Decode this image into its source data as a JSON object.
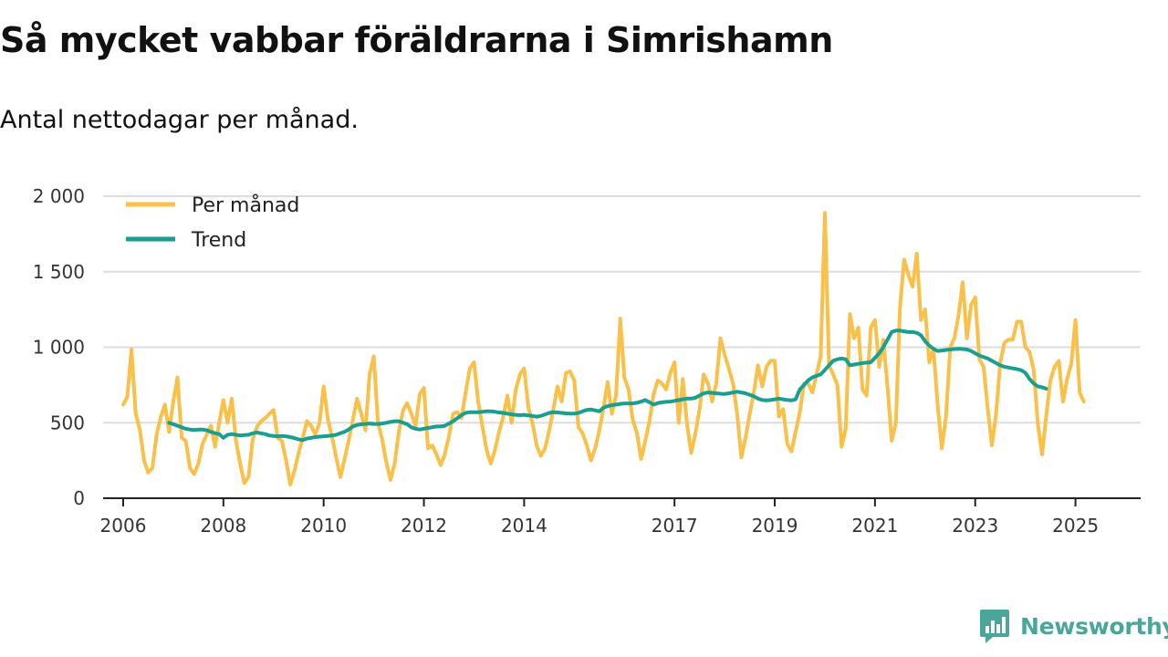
{
  "header": {
    "title": "Så mycket vabbar föräldrarna i Simrishamn",
    "subtitle": "Antal nettodagar per månad."
  },
  "brand": {
    "name": "Newsworthy",
    "icon": "bar-chart-icon"
  },
  "colors": {
    "monthly": "#f9c04a",
    "trend": "#1a9e8f",
    "grid": "#dddddd",
    "axis": "#222222",
    "brand": "#4aa59a"
  },
  "chart_data": {
    "type": "line",
    "title": "Så mycket vabbar föräldrarna i Simrishamn",
    "subtitle": "Antal nettodagar per månad.",
    "xlabel": "",
    "ylabel": "",
    "xlim": [
      2005.6,
      2026.3
    ],
    "ylim": [
      0,
      2000
    ],
    "yticks": [
      0,
      500,
      1000,
      1500,
      2000
    ],
    "ytick_labels": [
      "0",
      "500",
      "1 000",
      "1 500",
      "2 000"
    ],
    "xticks": [
      2006,
      2008,
      2010,
      2012,
      2014,
      2017,
      2019,
      2021,
      2023,
      2025
    ],
    "xtick_labels": [
      "2006",
      "2008",
      "2010",
      "2012",
      "2014",
      "2017",
      "2019",
      "2021",
      "2023",
      "2025"
    ],
    "grid": true,
    "legend": {
      "position": "top-left",
      "entries": [
        "Per månad",
        "Trend"
      ]
    },
    "series": [
      {
        "name": "Per månad",
        "x_start": 2006.0,
        "step": 0.0833333,
        "values": [
          620,
          670,
          985,
          560,
          450,
          250,
          170,
          200,
          420,
          540,
          620,
          440,
          640,
          800,
          400,
          380,
          200,
          160,
          230,
          360,
          420,
          480,
          340,
          500,
          650,
          500,
          660,
          380,
          230,
          100,
          140,
          390,
          470,
          510,
          530,
          560,
          585,
          400,
          380,
          250,
          90,
          180,
          300,
          400,
          510,
          480,
          420,
          500,
          740,
          520,
          410,
          270,
          140,
          260,
          380,
          520,
          660,
          560,
          450,
          820,
          940,
          500,
          390,
          240,
          120,
          230,
          440,
          580,
          630,
          560,
          480,
          690,
          730,
          330,
          350,
          290,
          220,
          290,
          410,
          560,
          570,
          530,
          700,
          860,
          900,
          640,
          480,
          320,
          230,
          320,
          440,
          540,
          680,
          500,
          720,
          820,
          860,
          600,
          500,
          350,
          280,
          330,
          450,
          590,
          740,
          640,
          830,
          840,
          780,
          470,
          430,
          350,
          250,
          330,
          450,
          600,
          770,
          560,
          680,
          1190,
          800,
          720,
          520,
          430,
          260,
          380,
          510,
          690,
          780,
          760,
          720,
          830,
          900,
          500,
          790,
          490,
          300,
          430,
          590,
          820,
          760,
          640,
          760,
          1060,
          950,
          860,
          760,
          560,
          270,
          400,
          560,
          700,
          880,
          740,
          870,
          910,
          910,
          540,
          590,
          360,
          310,
          440,
          570,
          760,
          760,
          700,
          820,
          940,
          1890,
          880,
          820,
          750,
          340,
          460,
          1220,
          1060,
          1130,
          720,
          680,
          1130,
          1180,
          870,
          1050,
          740,
          380,
          500,
          1270,
          1580,
          1480,
          1400,
          1620,
          1180,
          1250,
          900,
          990,
          620,
          330,
          540,
          1000,
          1060,
          1210,
          1430,
          1060,
          1280,
          1330,
          920,
          870,
          590,
          350,
          560,
          900,
          1030,
          1050,
          1050,
          1170,
          1170,
          1000,
          970,
          850,
          490,
          290,
          550,
          780,
          870,
          910,
          640,
          790,
          890,
          1180,
          700,
          640
        ]
      },
      {
        "name": "Trend",
        "x_start": 2006.9167,
        "step": 0.0833333,
        "values": [
          500,
          490,
          480,
          470,
          460,
          455,
          452,
          455,
          455,
          450,
          440,
          430,
          425,
          400,
          420,
          425,
          420,
          415,
          418,
          420,
          430,
          435,
          430,
          425,
          415,
          412,
          410,
          412,
          410,
          405,
          398,
          390,
          385,
          395,
          400,
          405,
          408,
          410,
          412,
          415,
          420,
          430,
          440,
          455,
          475,
          485,
          490,
          492,
          495,
          492,
          492,
          495,
          500,
          505,
          510,
          510,
          500,
          490,
          470,
          460,
          455,
          460,
          465,
          470,
          475,
          475,
          480,
          495,
          510,
          530,
          550,
          565,
          570,
          570,
          570,
          572,
          575,
          575,
          572,
          568,
          565,
          560,
          555,
          552,
          550,
          552,
          548,
          545,
          540,
          545,
          555,
          565,
          570,
          568,
          565,
          562,
          560,
          560,
          565,
          575,
          585,
          588,
          582,
          575,
          600,
          610,
          615,
          620,
          625,
          628,
          628,
          628,
          632,
          640,
          650,
          635,
          620,
          630,
          635,
          638,
          640,
          645,
          650,
          655,
          660,
          660,
          665,
          680,
          695,
          700,
          698,
          695,
          692,
          690,
          695,
          700,
          705,
          700,
          695,
          685,
          675,
          660,
          650,
          648,
          650,
          655,
          660,
          655,
          650,
          648,
          655,
          720,
          750,
          780,
          800,
          810,
          820,
          850,
          880,
          910,
          920,
          925,
          920,
          880,
          885,
          890,
          895,
          898,
          900,
          930,
          960,
          1000,
          1050,
          1100,
          1110,
          1110,
          1105,
          1100,
          1100,
          1095,
          1080,
          1040,
          1010,
          990,
          975,
          978,
          982,
          985,
          988,
          990,
          988,
          985,
          975,
          960,
          945,
          935,
          925,
          910,
          895,
          880,
          870,
          865,
          860,
          855,
          848,
          830,
          790,
          760,
          740,
          735,
          725
        ]
      }
    ]
  }
}
